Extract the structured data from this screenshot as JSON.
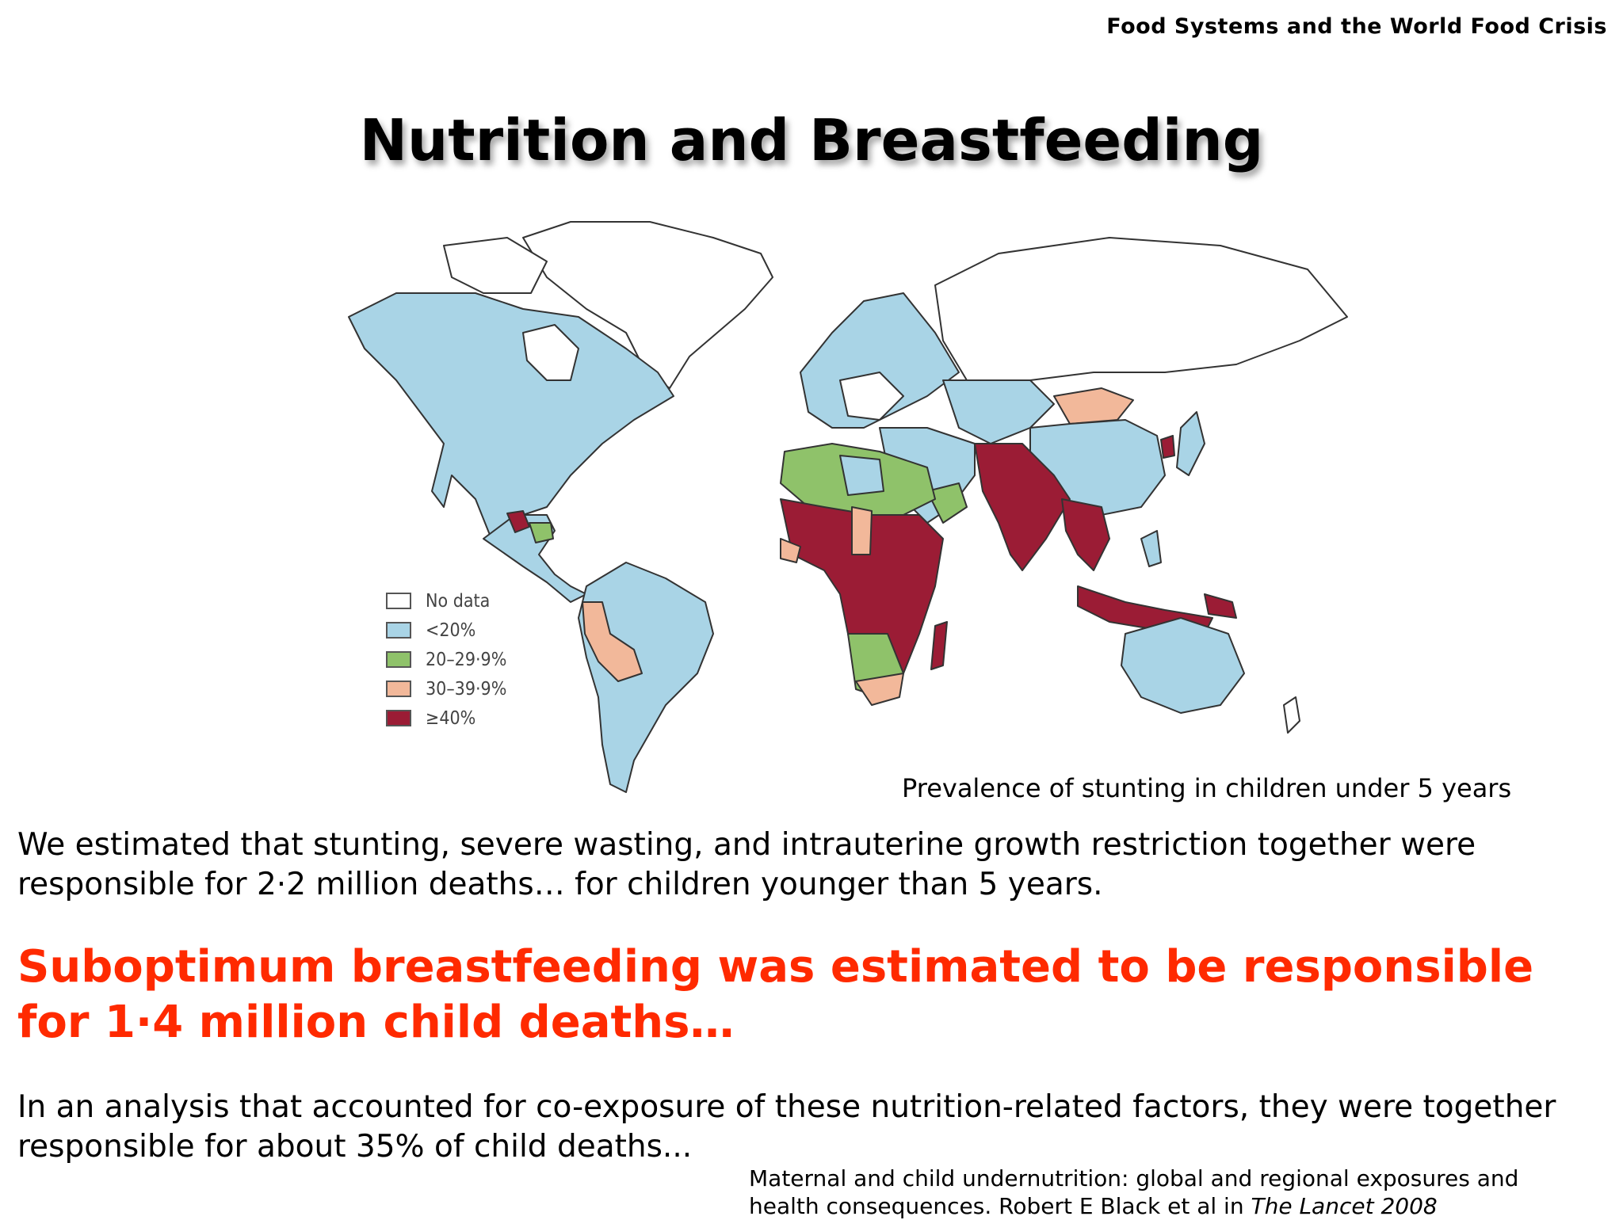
{
  "header": {
    "title": "Food Systems and the World Food Crisis"
  },
  "slide": {
    "title": "Nutrition and Breastfeeding"
  },
  "map": {
    "caption": "Prevalence of stunting in children under 5 years",
    "legend": [
      {
        "label": "No data",
        "color": "#ffffff"
      },
      {
        "label": "<20%",
        "color": "#a9d4e6"
      },
      {
        "label": "20–29·9%",
        "color": "#8fc26a"
      },
      {
        "label": "30–39·9%",
        "color": "#f2b89a"
      },
      {
        "label": "≥40%",
        "color": "#9b1c35"
      }
    ]
  },
  "text": {
    "para1_line1": "We estimated that stunting, severe wasting, and intrauterine growth restriction together were",
    "para1_line2": "responsible for 2·2 million deaths… for children younger than 5 years.",
    "highlight_line1": "Suboptimum breastfeeding was estimated to be responsible",
    "highlight_line2": "for 1·4 million child deaths…",
    "para2_line1": "In an analysis that accounted for co-exposure of these nutrition-related factors, they were together",
    "para2_line2": "responsible for about 35% of child deaths..."
  },
  "citation": {
    "line1": "Maternal and child undernutrition: global and regional exposures and",
    "line2_prefix": "health consequences. Robert E Black et al in ",
    "line2_italic": "The Lancet 2008"
  }
}
